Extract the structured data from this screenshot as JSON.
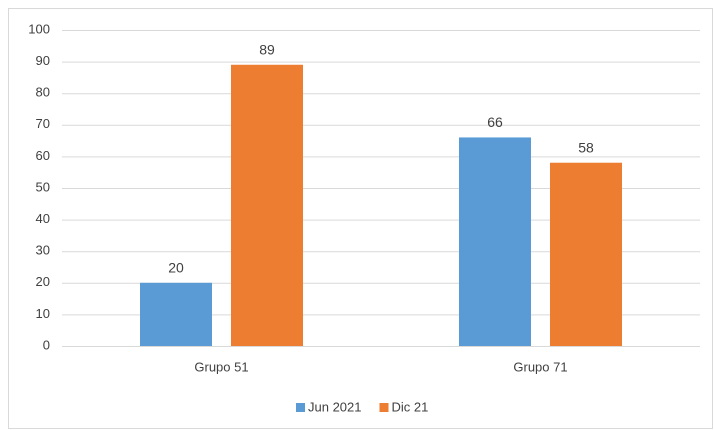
{
  "chart_data": {
    "type": "bar",
    "categories": [
      "Grupo 51",
      "Grupo 71"
    ],
    "series": [
      {
        "name": "Jun 2021",
        "color": "#5b9bd5",
        "values": [
          20,
          66
        ]
      },
      {
        "name": "Dic 21",
        "color": "#ed7d31",
        "values": [
          89,
          58
        ]
      }
    ],
    "ylim": [
      0,
      100
    ],
    "yticks": [
      0,
      10,
      20,
      30,
      40,
      50,
      60,
      70,
      80,
      90,
      100
    ],
    "grid": true,
    "legend": "bottom",
    "data_labels": true
  }
}
